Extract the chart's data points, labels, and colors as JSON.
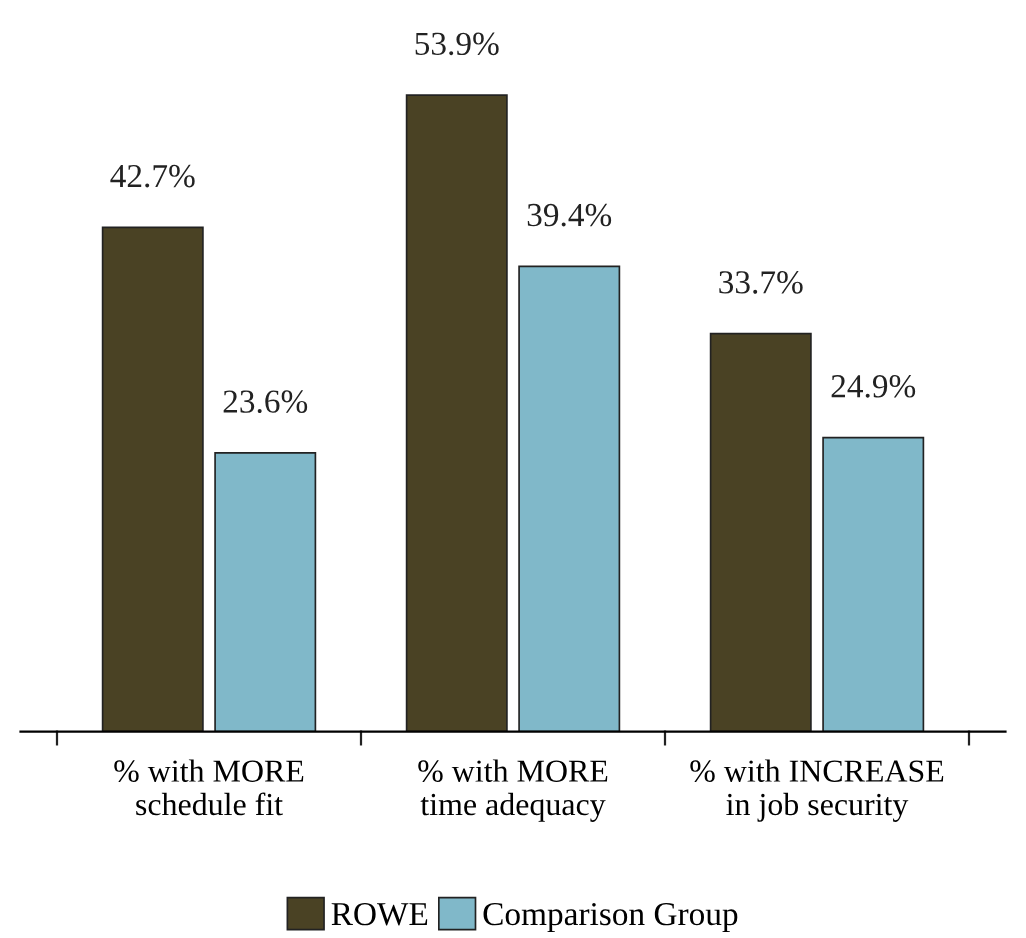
{
  "chart_data": {
    "type": "bar",
    "categories": [
      "% with MORE\nschedule fit",
      "% with MORE\ntime adequacy",
      "% with INCREASE\nin job security"
    ],
    "series": [
      {
        "name": "ROWE",
        "color": "#4a4224",
        "values": [
          42.7,
          53.9,
          33.7
        ],
        "value_labels": [
          "42.7%",
          "53.9%",
          "33.7%"
        ]
      },
      {
        "name": "Comparison Group",
        "color": "#80b8c9",
        "values": [
          23.6,
          39.4,
          24.9
        ],
        "value_labels": [
          "23.6%",
          "39.4%",
          "24.9%"
        ]
      }
    ],
    "grid": false,
    "legend": "bottom"
  }
}
